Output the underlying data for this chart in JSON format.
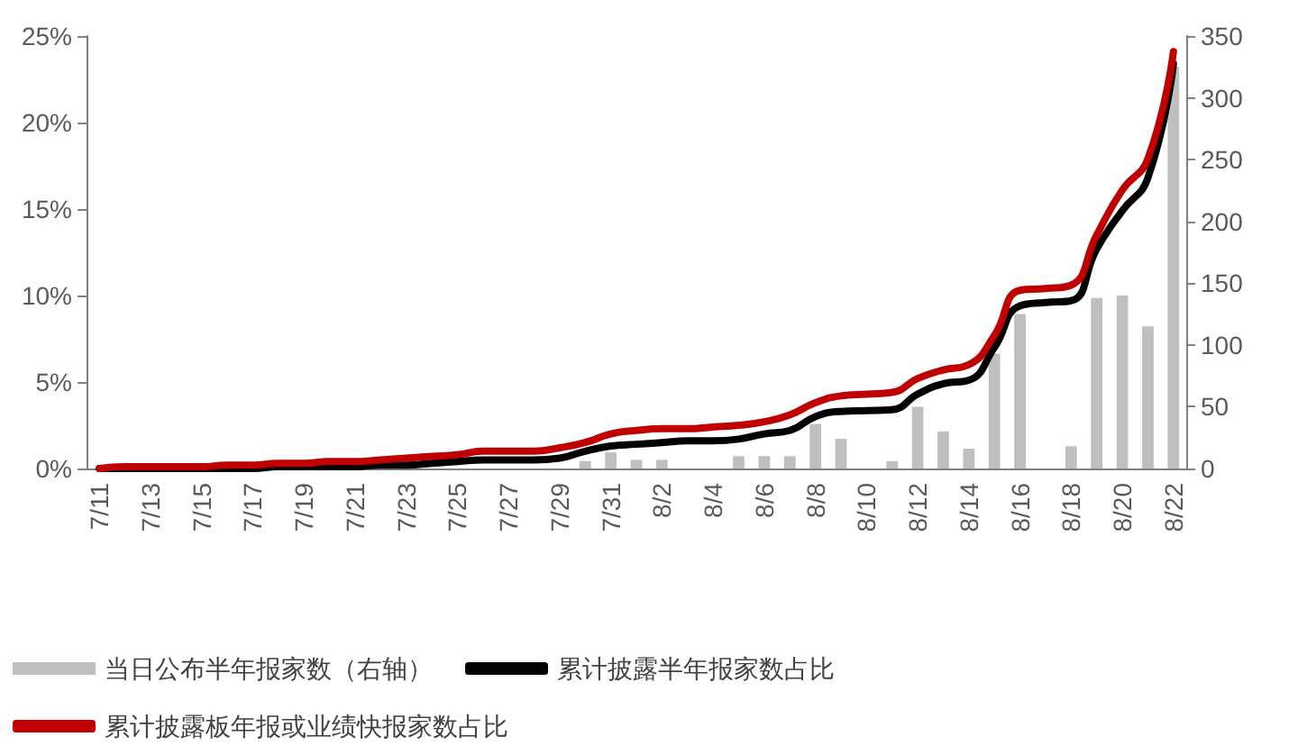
{
  "chart_data": {
    "type": "bar",
    "categories": [
      "7/11",
      null,
      "7/13",
      null,
      "7/15",
      null,
      "7/17",
      null,
      "7/19",
      null,
      "7/21",
      null,
      "7/23",
      null,
      "7/25",
      null,
      "7/27",
      null,
      "7/29",
      null,
      "7/31",
      null,
      "8/2",
      null,
      "8/4",
      null,
      "8/6",
      null,
      "8/8",
      null,
      "8/10",
      null,
      "8/12",
      null,
      "8/14",
      null,
      "8/16",
      null,
      "8/18",
      null,
      "8/20",
      null,
      "8/22"
    ],
    "series": [
      {
        "name": "当日公布半年报家数（右轴）",
        "axis": "y2",
        "color": "#bfbfbf",
        "values": [
          0,
          0,
          0,
          0,
          0,
          0,
          0,
          0,
          0,
          0,
          0,
          0,
          0,
          0,
          0,
          0,
          0,
          0,
          0,
          6,
          13,
          7,
          7,
          0,
          0,
          10,
          10,
          10,
          36,
          24,
          0,
          6,
          50,
          30,
          16,
          93,
          125,
          0,
          18,
          138,
          140,
          115,
          325
        ]
      },
      {
        "name": "累计披露半年报家数占比",
        "type": "line",
        "color": "#000000",
        "values": [
          0,
          0,
          0,
          0,
          0,
          0,
          0,
          0.1,
          0.1,
          0.1,
          0.1,
          0.2,
          0.2,
          0.3,
          0.4,
          0.5,
          0.5,
          0.5,
          0.6,
          1.0,
          1.3,
          1.4,
          1.5,
          1.6,
          1.6,
          1.7,
          2.0,
          2.2,
          3.0,
          3.3,
          3.35,
          3.4,
          4.3,
          4.9,
          5.1,
          7.0,
          9.4,
          9.6,
          9.7,
          12.7,
          14.9,
          16.8,
          23.4
        ]
      },
      {
        "name": "累计披露板年报或业绩快报家数占比",
        "type": "line",
        "color": "#c00000",
        "values": [
          0,
          0.1,
          0.1,
          0.1,
          0.1,
          0.2,
          0.2,
          0.3,
          0.3,
          0.4,
          0.4,
          0.5,
          0.6,
          0.7,
          0.8,
          1.0,
          1.0,
          1.0,
          1.2,
          1.5,
          2.0,
          2.2,
          2.3,
          2.3,
          2.4,
          2.5,
          2.7,
          3.1,
          3.8,
          4.2,
          4.3,
          4.4,
          5.2,
          5.7,
          6.0,
          7.7,
          10.3,
          10.4,
          10.6,
          13.5,
          16.1,
          17.9,
          24.1
        ]
      }
    ],
    "ylim": [
      0,
      25
    ],
    "yticks": [
      {
        "value": 0,
        "label": "0%"
      },
      {
        "value": 5,
        "label": "5%"
      },
      {
        "value": 10,
        "label": "10%"
      },
      {
        "value": 15,
        "label": "15%"
      },
      {
        "value": 20,
        "label": "20%"
      },
      {
        "value": 25,
        "label": "25%"
      }
    ],
    "y2lim": [
      0,
      350
    ],
    "y2ticks": [
      0,
      50,
      100,
      150,
      200,
      250,
      300,
      350
    ],
    "grid": false,
    "legend": "bottom",
    "marker": "none",
    "line_style": "solid"
  }
}
